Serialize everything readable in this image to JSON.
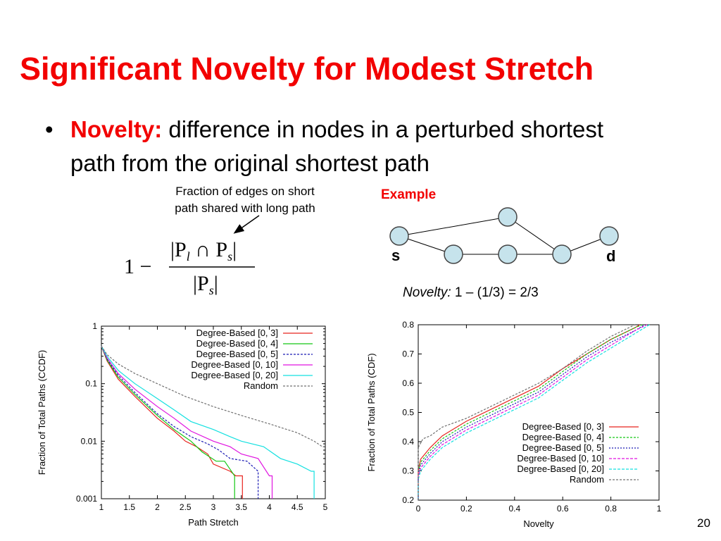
{
  "slide": {
    "title": "Significant Novelty for Modest Stretch",
    "bullet_symbol": "•",
    "bullet_term": "Novelty:",
    "bullet_text": " difference in nodes in a perturbed shortest path from the original shortest path",
    "formula_annotation_line1": "Fraction of edges on short",
    "formula_annotation_line2": "path shared with long path",
    "formula": {
      "one_minus": "1 −",
      "numerator": "|P",
      "num_sub_l": "l",
      "cap": " ∩ P",
      "num_sub_s": "s",
      "num_close": "|",
      "denominator": "|P",
      "den_sub_s": "s",
      "den_close": "|"
    },
    "example_label": "Example",
    "example_node_s": "s",
    "example_node_d": "d",
    "novelty_example_italic": "Novelty:",
    "novelty_example_value": " 1 – (1/3) = 2/3",
    "page_number": "20",
    "colors": {
      "title": "#f20000",
      "accent": "#f20000",
      "node_fill": "#c6e3ec",
      "node_stroke": "#444444"
    }
  },
  "chart_data": [
    {
      "type": "line",
      "scale": "log-y",
      "xlabel": "Path Stretch",
      "ylabel": "Fraction of Total Paths (CCDF)",
      "xlim": [
        1,
        5
      ],
      "ylim": [
        0.001,
        1
      ],
      "x_ticks": [
        "1",
        "1.5",
        "2",
        "2.5",
        "3",
        "3.5",
        "4",
        "4.5",
        "5"
      ],
      "y_ticks": [
        "0.001",
        "0.01",
        "0.1",
        "1"
      ],
      "legend_position": "top-right",
      "series": [
        {
          "name": "Degree-Based [0,  3]",
          "color": "#e8251f",
          "dash": "",
          "points": [
            [
              1.0,
              0.45
            ],
            [
              1.1,
              0.25
            ],
            [
              1.3,
              0.12
            ],
            [
              1.6,
              0.06
            ],
            [
              2.0,
              0.025
            ],
            [
              2.3,
              0.015
            ],
            [
              2.5,
              0.01
            ],
            [
              2.7,
              0.008
            ],
            [
              2.9,
              0.006
            ],
            [
              3.0,
              0.004
            ],
            [
              3.3,
              0.003
            ],
            [
              3.4,
              0.0025
            ],
            [
              3.52,
              0.0025
            ],
            [
              3.52,
              0.001
            ]
          ]
        },
        {
          "name": "Degree-Based [0,  4]",
          "color": "#14c814",
          "dash": "",
          "points": [
            [
              1.0,
              0.45
            ],
            [
              1.1,
              0.26
            ],
            [
              1.3,
              0.13
            ],
            [
              1.6,
              0.065
            ],
            [
              2.0,
              0.028
            ],
            [
              2.3,
              0.016
            ],
            [
              2.6,
              0.01
            ],
            [
              2.8,
              0.0065
            ],
            [
              3.05,
              0.0045
            ],
            [
              3.2,
              0.0045
            ],
            [
              3.38,
              0.0025
            ],
            [
              3.38,
              0.001
            ]
          ]
        },
        {
          "name": "Degree-Based [0,  5]",
          "color": "#1a1ab4",
          "dash": "3,2",
          "points": [
            [
              1.0,
              0.45
            ],
            [
              1.1,
              0.27
            ],
            [
              1.3,
              0.14
            ],
            [
              1.6,
              0.07
            ],
            [
              2.0,
              0.03
            ],
            [
              2.3,
              0.018
            ],
            [
              2.6,
              0.012
            ],
            [
              2.9,
              0.009
            ],
            [
              3.1,
              0.007
            ],
            [
              3.3,
              0.005
            ],
            [
              3.6,
              0.0045
            ],
            [
              3.8,
              0.003
            ],
            [
              3.8,
              0.001
            ]
          ]
        },
        {
          "name": "Degree-Based [0, 10]",
          "color": "#e014e0",
          "dash": "",
          "points": [
            [
              1.0,
              0.45
            ],
            [
              1.1,
              0.28
            ],
            [
              1.3,
              0.15
            ],
            [
              1.6,
              0.08
            ],
            [
              2.0,
              0.04
            ],
            [
              2.3,
              0.025
            ],
            [
              2.6,
              0.015
            ],
            [
              3.0,
              0.01
            ],
            [
              3.3,
              0.008
            ],
            [
              3.5,
              0.006
            ],
            [
              3.8,
              0.005
            ],
            [
              4.0,
              0.0025
            ],
            [
              4.05,
              0.0025
            ],
            [
              4.05,
              0.001
            ]
          ]
        },
        {
          "name": "Degree-Based [0, 20]",
          "color": "#14e0e0",
          "dash": "",
          "points": [
            [
              1.0,
              0.45
            ],
            [
              1.1,
              0.3
            ],
            [
              1.3,
              0.17
            ],
            [
              1.6,
              0.1
            ],
            [
              2.0,
              0.055
            ],
            [
              2.3,
              0.035
            ],
            [
              2.6,
              0.022
            ],
            [
              3.0,
              0.016
            ],
            [
              3.3,
              0.012
            ],
            [
              3.5,
              0.01
            ],
            [
              3.9,
              0.008
            ],
            [
              4.2,
              0.005
            ],
            [
              4.5,
              0.004
            ],
            [
              4.75,
              0.003
            ],
            [
              4.8,
              0.003
            ],
            [
              4.8,
              0.001
            ]
          ]
        },
        {
          "name": "Random",
          "color": "#707070",
          "dash": "3,2",
          "points": [
            [
              1.0,
              0.45
            ],
            [
              1.1,
              0.32
            ],
            [
              1.3,
              0.22
            ],
            [
              1.6,
              0.15
            ],
            [
              2.0,
              0.1
            ],
            [
              2.5,
              0.06
            ],
            [
              3.0,
              0.04
            ],
            [
              3.5,
              0.028
            ],
            [
              4.0,
              0.02
            ],
            [
              4.5,
              0.014
            ],
            [
              4.8,
              0.01
            ],
            [
              4.95,
              0.008
            ],
            [
              5.0,
              0.008
            ]
          ]
        }
      ]
    },
    {
      "type": "line",
      "xlabel": "Novelty",
      "ylabel": "Fraction of Total Paths (CDF)",
      "xlim": [
        0,
        1
      ],
      "ylim": [
        0.2,
        0.8
      ],
      "x_ticks": [
        "0",
        "0.2",
        "0.4",
        "0.6",
        "0.8",
        "1"
      ],
      "y_ticks": [
        "0.2",
        "0.3",
        "0.4",
        "0.5",
        "0.6",
        "0.7",
        "0.8"
      ],
      "legend_position": "bottom-right",
      "series": [
        {
          "name": "Degree-Based  [0,  3]",
          "color": "#e8251f",
          "dash": "",
          "points": [
            [
              0.0,
              0.2
            ],
            [
              0.0,
              0.3
            ],
            [
              0.01,
              0.34
            ],
            [
              0.05,
              0.38
            ],
            [
              0.1,
              0.42
            ],
            [
              0.2,
              0.47
            ],
            [
              0.3,
              0.51
            ],
            [
              0.4,
              0.55
            ],
            [
              0.5,
              0.59
            ],
            [
              0.6,
              0.65
            ],
            [
              0.7,
              0.7
            ],
            [
              0.8,
              0.75
            ],
            [
              0.9,
              0.79
            ],
            [
              0.92,
              0.8
            ]
          ]
        },
        {
          "name": "Degree-Based  [0,  4]",
          "color": "#14c814",
          "dash": "3,2",
          "points": [
            [
              0.0,
              0.2
            ],
            [
              0.0,
              0.3
            ],
            [
              0.01,
              0.33
            ],
            [
              0.05,
              0.37
            ],
            [
              0.1,
              0.41
            ],
            [
              0.2,
              0.46
            ],
            [
              0.3,
              0.5
            ],
            [
              0.4,
              0.54
            ],
            [
              0.5,
              0.58
            ],
            [
              0.6,
              0.64
            ],
            [
              0.7,
              0.7
            ],
            [
              0.8,
              0.75
            ],
            [
              0.9,
              0.79
            ],
            [
              0.93,
              0.8
            ]
          ]
        },
        {
          "name": "Degree-Based  [0,  5]",
          "color": "#1a1ab4",
          "dash": "2,2",
          "points": [
            [
              0.0,
              0.2
            ],
            [
              0.0,
              0.29
            ],
            [
              0.01,
              0.32
            ],
            [
              0.05,
              0.36
            ],
            [
              0.1,
              0.4
            ],
            [
              0.2,
              0.45
            ],
            [
              0.3,
              0.49
            ],
            [
              0.4,
              0.53
            ],
            [
              0.5,
              0.57
            ],
            [
              0.6,
              0.63
            ],
            [
              0.7,
              0.69
            ],
            [
              0.8,
              0.74
            ],
            [
              0.9,
              0.78
            ],
            [
              0.94,
              0.8
            ]
          ]
        },
        {
          "name": "Degree-Based  [0, 10]",
          "color": "#e014e0",
          "dash": "4,2",
          "points": [
            [
              0.0,
              0.2
            ],
            [
              0.0,
              0.28
            ],
            [
              0.01,
              0.31
            ],
            [
              0.05,
              0.35
            ],
            [
              0.1,
              0.39
            ],
            [
              0.2,
              0.44
            ],
            [
              0.3,
              0.48
            ],
            [
              0.4,
              0.52
            ],
            [
              0.5,
              0.56
            ],
            [
              0.6,
              0.62
            ],
            [
              0.7,
              0.68
            ],
            [
              0.8,
              0.73
            ],
            [
              0.9,
              0.78
            ],
            [
              0.95,
              0.8
            ]
          ]
        },
        {
          "name": "Degree-Based  [0, 20]",
          "color": "#14e0e0",
          "dash": "4,2",
          "points": [
            [
              0.0,
              0.2
            ],
            [
              0.0,
              0.27
            ],
            [
              0.01,
              0.3
            ],
            [
              0.05,
              0.34
            ],
            [
              0.1,
              0.38
            ],
            [
              0.2,
              0.43
            ],
            [
              0.3,
              0.47
            ],
            [
              0.4,
              0.51
            ],
            [
              0.5,
              0.55
            ],
            [
              0.6,
              0.61
            ],
            [
              0.7,
              0.67
            ],
            [
              0.8,
              0.72
            ],
            [
              0.9,
              0.77
            ],
            [
              0.96,
              0.8
            ]
          ]
        },
        {
          "name": "Random",
          "color": "#707070",
          "dash": "3,2",
          "points": [
            [
              0.0,
              0.2
            ],
            [
              0.0,
              0.38
            ],
            [
              0.02,
              0.41
            ],
            [
              0.05,
              0.42
            ],
            [
              0.1,
              0.45
            ],
            [
              0.2,
              0.48
            ],
            [
              0.3,
              0.52
            ],
            [
              0.4,
              0.56
            ],
            [
              0.5,
              0.6
            ],
            [
              0.6,
              0.65
            ],
            [
              0.7,
              0.71
            ],
            [
              0.8,
              0.76
            ],
            [
              0.9,
              0.8
            ]
          ]
        }
      ]
    }
  ]
}
